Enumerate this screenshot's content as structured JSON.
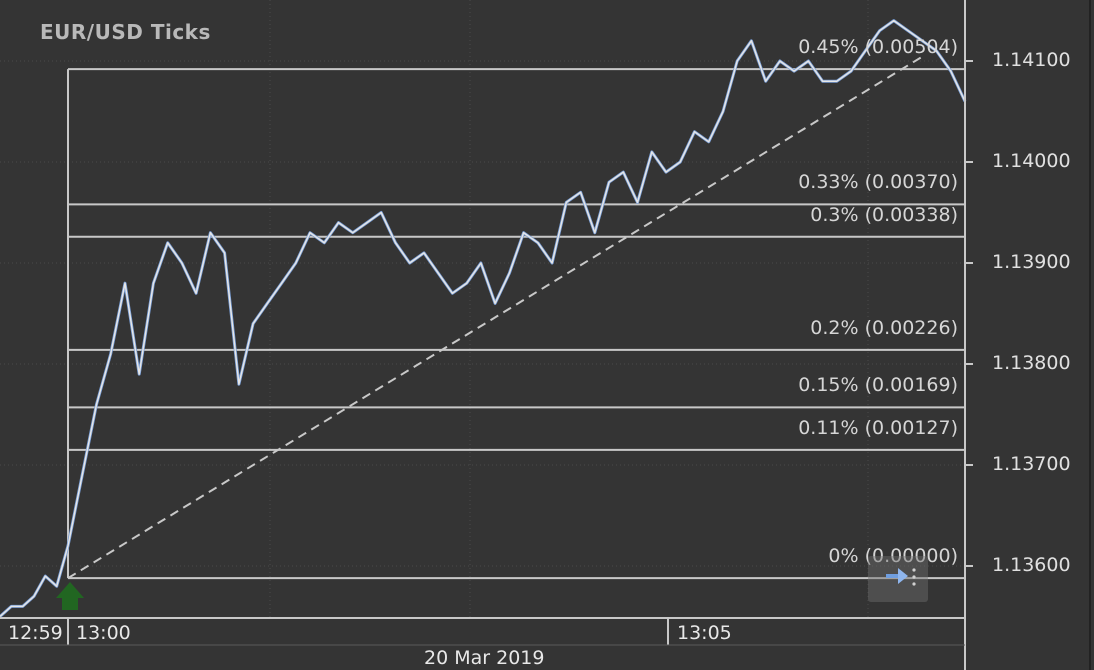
{
  "chart_data": {
    "type": "line",
    "title": "EUR/USD  Ticks",
    "y_axis": {
      "labels": [
        "1.14100",
        "1.14000",
        "1.13900",
        "1.13800",
        "1.13700",
        "1.13600"
      ],
      "values": [
        1.141,
        1.14,
        1.139,
        1.138,
        1.137,
        1.136
      ],
      "ylim": [
        1.1349,
        1.142
      ]
    },
    "x_axis": {
      "tick_labels": [
        "12:59",
        "13:00",
        "13:05"
      ],
      "date_label": "20 Mar 2019"
    },
    "base_price": 1.13588,
    "fib_levels": [
      {
        "label": "0.45% (0.00504)",
        "price": 1.14092
      },
      {
        "label": "0.33% (0.00370)",
        "price": 1.13958
      },
      {
        "label": "0.3% (0.00338)",
        "price": 1.13926
      },
      {
        "label": "0.2% (0.00226)",
        "price": 1.13814
      },
      {
        "label": "0.15% (0.00169)",
        "price": 1.13757
      },
      {
        "label": "0.11% (0.00127)",
        "price": 1.13715
      },
      {
        "label": "0% (0.00000)",
        "price": 1.13588
      }
    ],
    "trend_line": {
      "from_price": 1.13588,
      "to_price": 1.141
    },
    "series": [
      {
        "values": [
          1.1355,
          1.1356,
          1.1356,
          1.1357,
          1.1359,
          1.1358,
          1.1362,
          1.1369,
          1.1376,
          1.1381,
          1.1388,
          1.1379,
          1.1388,
          1.1392,
          1.139,
          1.1387,
          1.1393,
          1.1391,
          1.1378,
          1.1384,
          1.1386,
          1.1388,
          1.139,
          1.1393,
          1.1392,
          1.1394,
          1.1393,
          1.1394,
          1.1395,
          1.1392,
          1.139,
          1.1391,
          1.1389,
          1.1387,
          1.1388,
          1.139,
          1.1386,
          1.1389,
          1.1393,
          1.1392,
          1.139,
          1.1396,
          1.1397,
          1.1393,
          1.1398,
          1.1399,
          1.1396,
          1.1401,
          1.1399,
          1.14,
          1.1403,
          1.1402,
          1.1405,
          1.141,
          1.1412,
          1.1408,
          1.141,
          1.1409,
          1.141,
          1.1408,
          1.1408,
          1.1409,
          1.1411,
          1.1413,
          1.1414,
          1.1413,
          1.1412,
          1.1411,
          1.1409,
          1.1406
        ]
      }
    ]
  }
}
